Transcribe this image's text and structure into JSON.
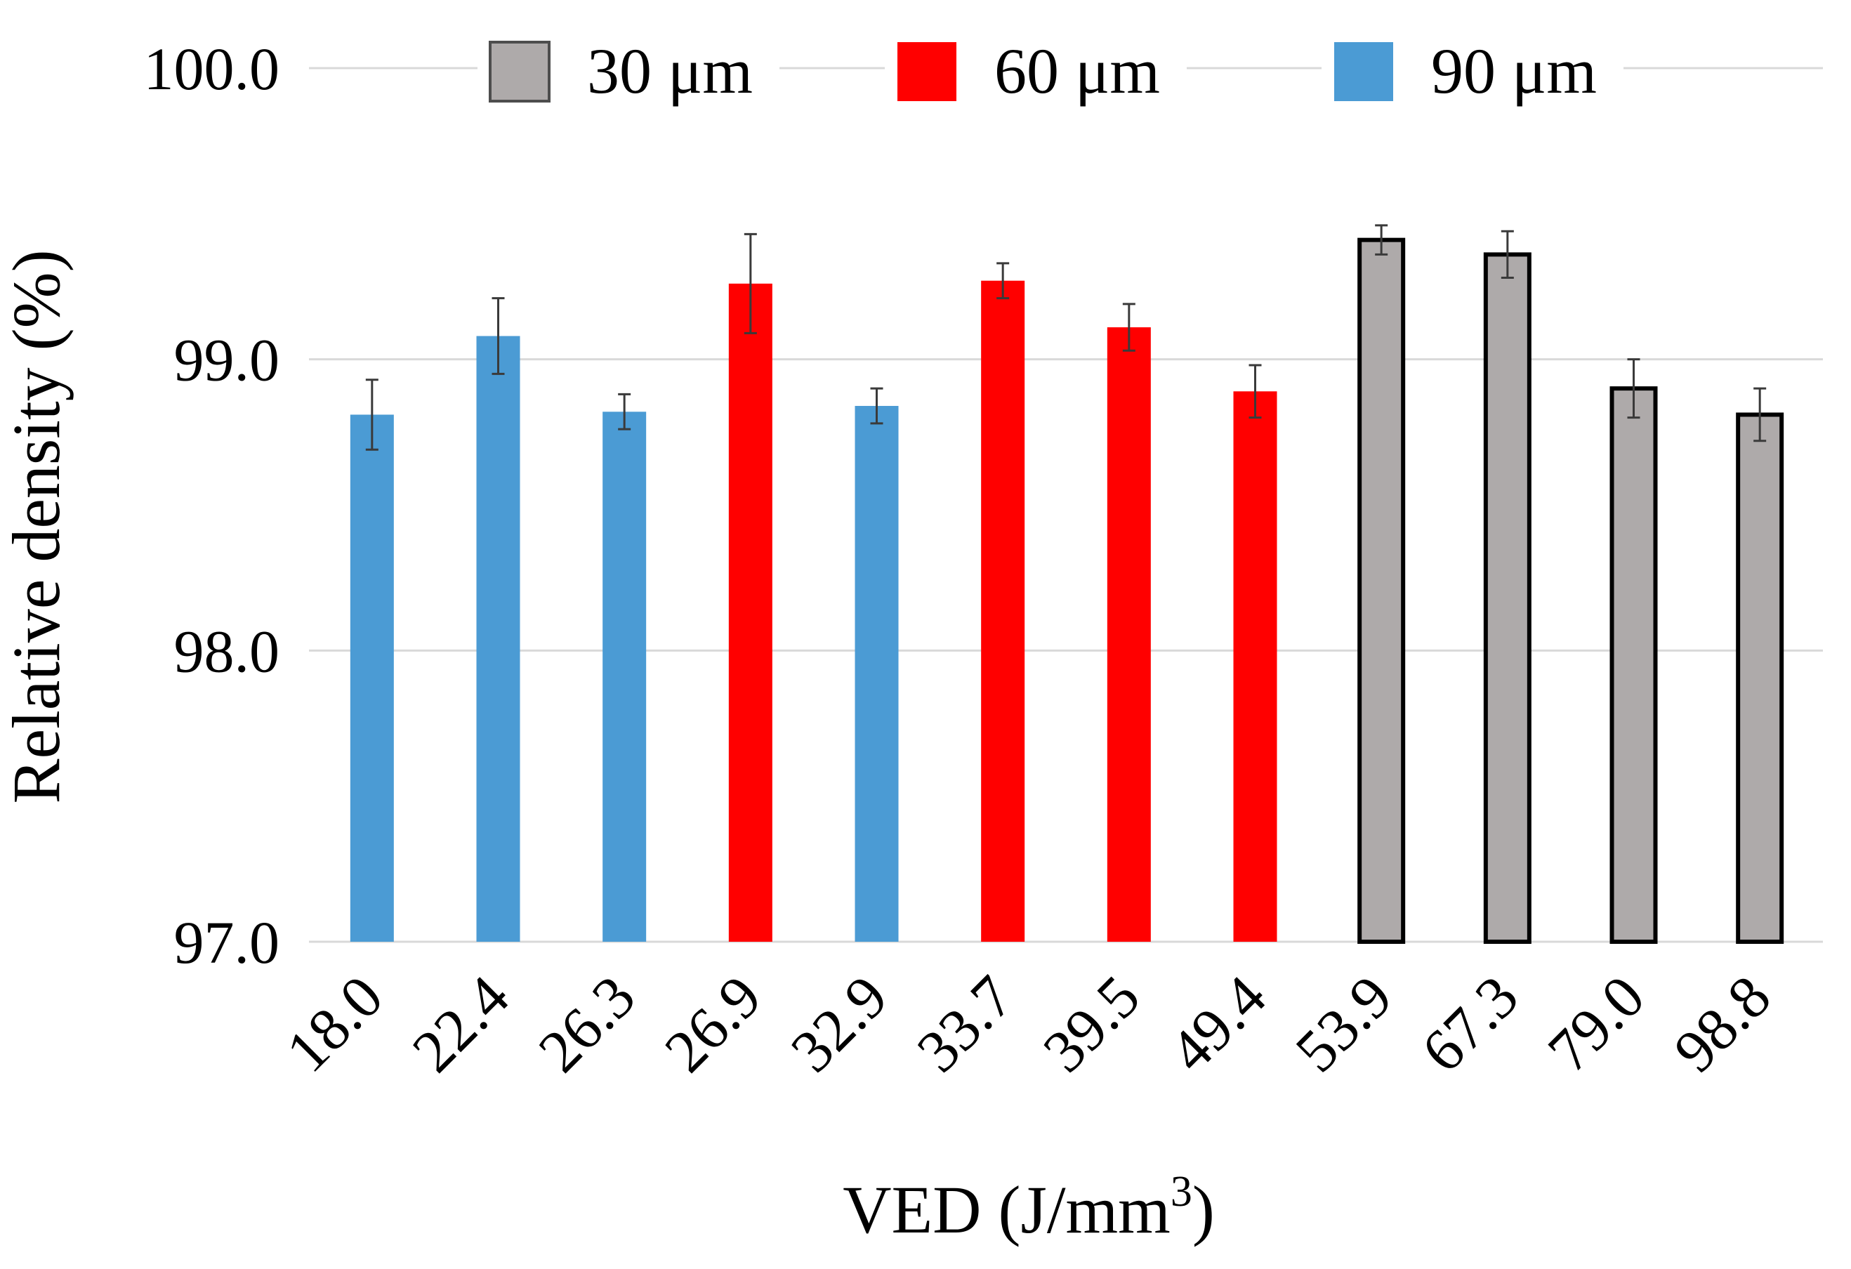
{
  "chart_data": {
    "type": "bar",
    "title": "",
    "xlabel": "VED (J/mm",
    "xlabel_superscript": "3",
    "xlabel_suffix": ")",
    "ylabel": "Relative density (%)",
    "ylim": [
      97.0,
      100.0
    ],
    "yticks": [
      "97.0",
      "98.0",
      "99.0",
      "100.0"
    ],
    "ytick_values": [
      97.0,
      98.0,
      99.0,
      100.0
    ],
    "grid": true,
    "legend_position": "top",
    "categories": [
      "18.0",
      "22.4",
      "26.3",
      "26.9",
      "32.9",
      "33.7",
      "39.5",
      "49.4",
      "53.9",
      "67.3",
      "79.0",
      "98.8"
    ],
    "series": [
      {
        "name": "30 μm",
        "color": "#aeaaaa",
        "outlined": true
      },
      {
        "name": "60 μm",
        "color": "#ff0000",
        "outlined": false
      },
      {
        "name": "90 μm",
        "color": "#4b9bd4",
        "outlined": false
      }
    ],
    "bars": [
      {
        "category": "18.0",
        "series": "90 μm",
        "value": 98.81,
        "error": 0.12
      },
      {
        "category": "22.4",
        "series": "90 μm",
        "value": 99.08,
        "error": 0.13
      },
      {
        "category": "26.3",
        "series": "90 μm",
        "value": 98.82,
        "error": 0.06
      },
      {
        "category": "26.9",
        "series": "60 μm",
        "value": 99.26,
        "error": 0.17
      },
      {
        "category": "32.9",
        "series": "90 μm",
        "value": 98.84,
        "error": 0.06
      },
      {
        "category": "33.7",
        "series": "60 μm",
        "value": 99.27,
        "error": 0.06
      },
      {
        "category": "39.5",
        "series": "60 μm",
        "value": 99.11,
        "error": 0.08
      },
      {
        "category": "49.4",
        "series": "60 μm",
        "value": 98.89,
        "error": 0.09
      },
      {
        "category": "53.9",
        "series": "30 μm",
        "value": 99.41,
        "error": 0.05
      },
      {
        "category": "67.3",
        "series": "30 μm",
        "value": 99.36,
        "error": 0.08
      },
      {
        "category": "79.0",
        "series": "30 μm",
        "value": 98.9,
        "error": 0.1
      },
      {
        "category": "98.8",
        "series": "30 μm",
        "value": 98.81,
        "error": 0.09
      }
    ]
  }
}
